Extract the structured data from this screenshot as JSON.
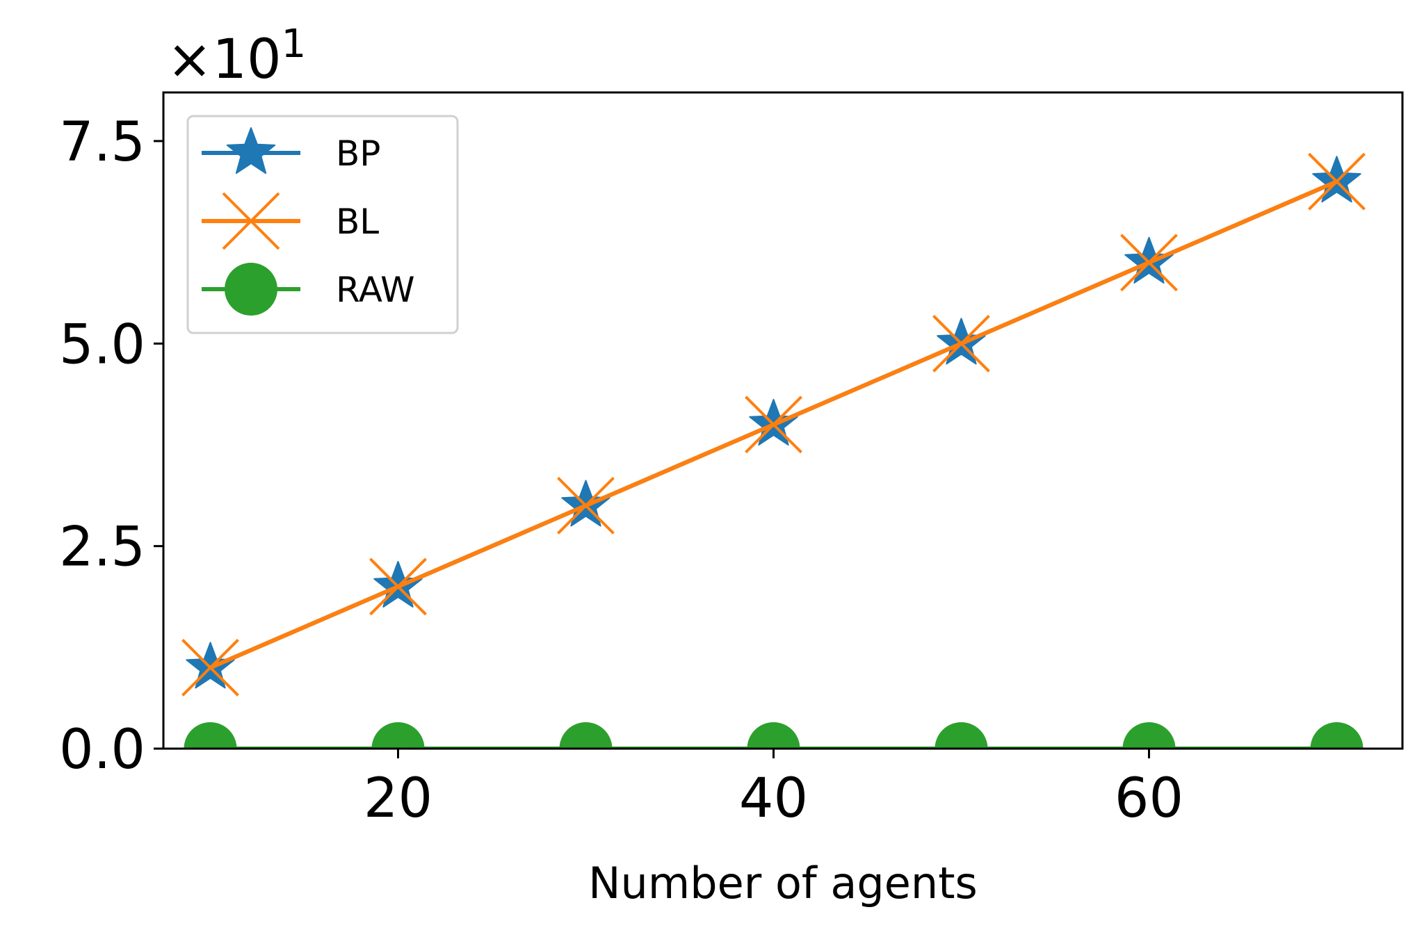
{
  "chart_data": {
    "type": "line",
    "title": "",
    "xlabel": "Number of agents",
    "ylabel": "",
    "y_offset_text": {
      "base": "×10",
      "exponent": "1"
    },
    "x": [
      10,
      20,
      30,
      40,
      50,
      60,
      70
    ],
    "xlim": [
      7.5,
      73.5
    ],
    "ylim": [
      0.0,
      8.1
    ],
    "x_ticks": [
      20,
      40,
      60
    ],
    "x_tick_labels": [
      "20",
      "40",
      "60"
    ],
    "y_ticks": [
      0.0,
      2.5,
      5.0,
      7.5
    ],
    "y_tick_labels": [
      "0.0",
      "2.5",
      "5.0",
      "7.5"
    ],
    "grid": false,
    "legend_position": "upper-left",
    "series": [
      {
        "name": "BP",
        "values": [
          1,
          2,
          3,
          4,
          5,
          6,
          7
        ],
        "color": "#1f77b4",
        "marker": "star"
      },
      {
        "name": "BL",
        "values": [
          1,
          2,
          3,
          4,
          5,
          6,
          7
        ],
        "color": "#ff7f0e",
        "marker": "x"
      },
      {
        "name": "RAW",
        "values": [
          0,
          0,
          0,
          0,
          0,
          0,
          0
        ],
        "color": "#2ca02c",
        "marker": "circle"
      }
    ]
  }
}
